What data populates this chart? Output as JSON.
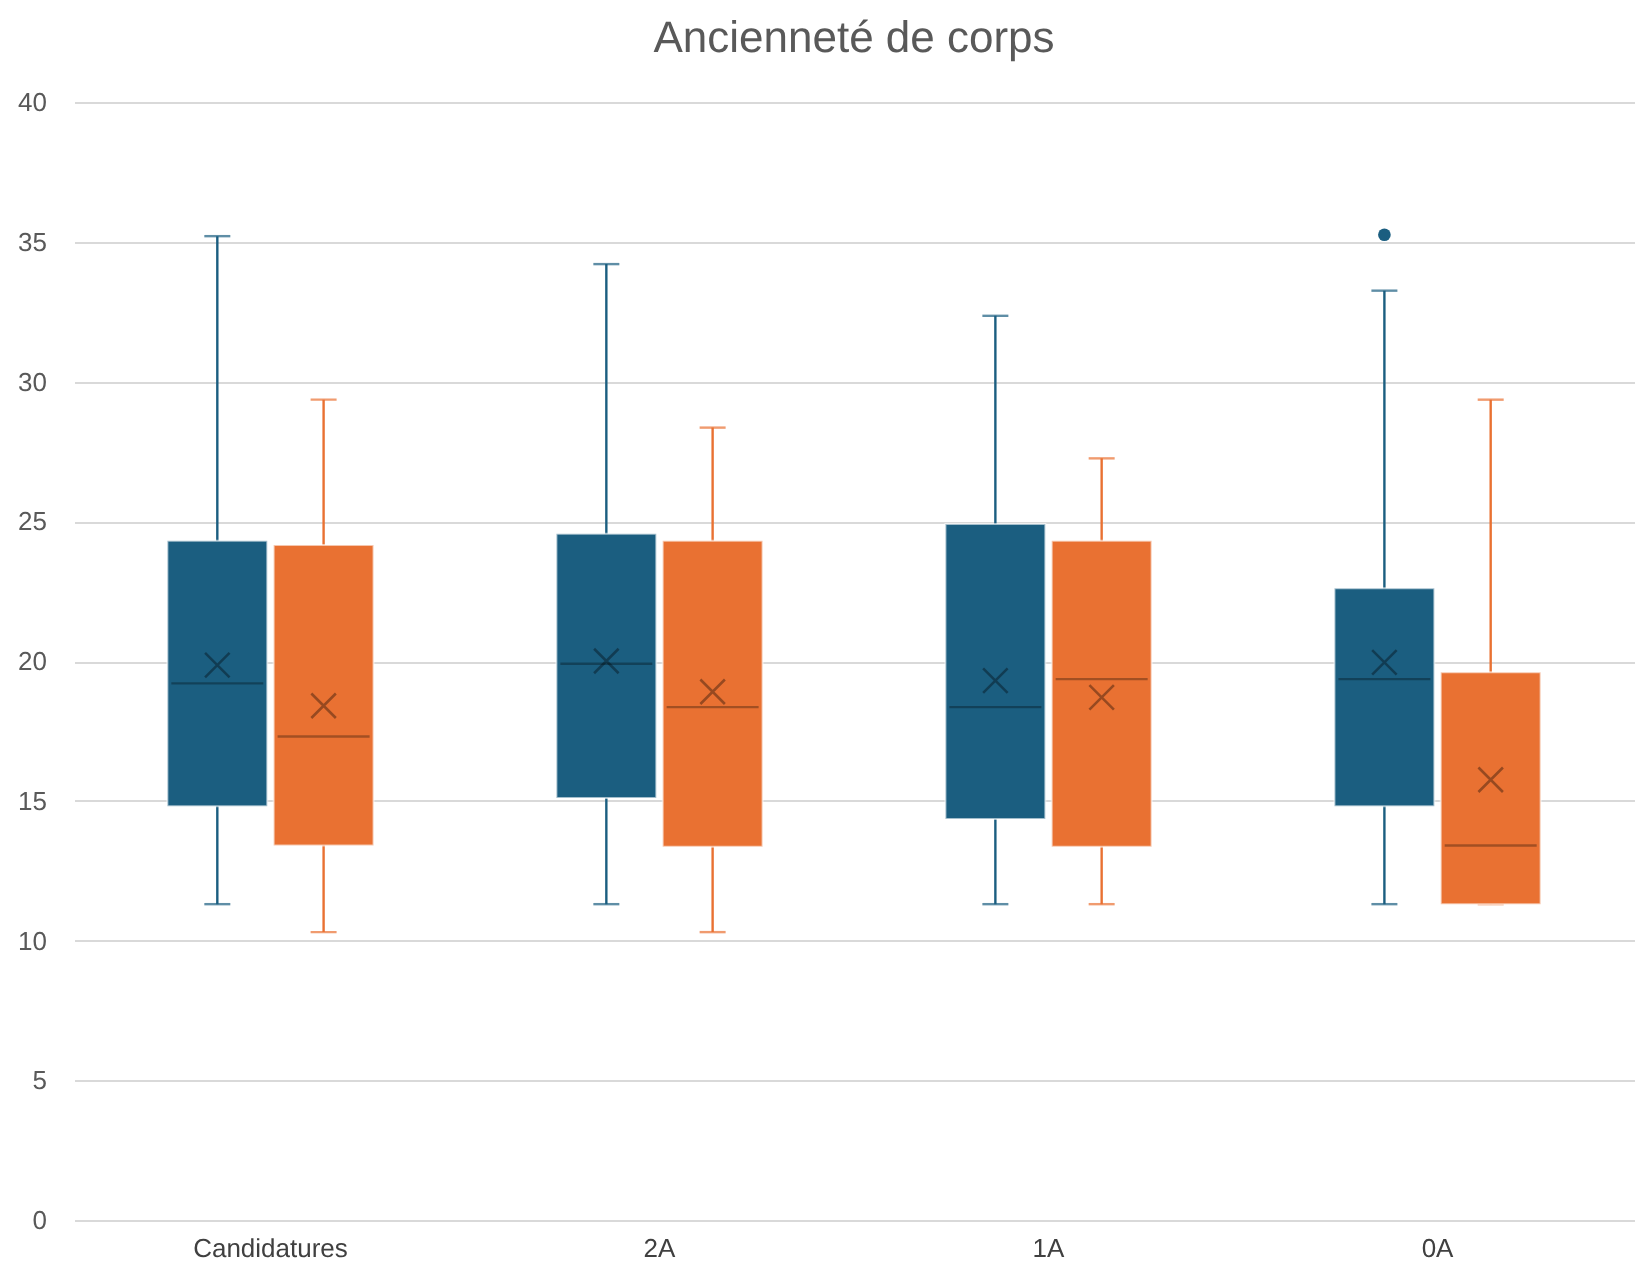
{
  "chart_data": {
    "type": "box",
    "title": "Ancienneté de corps",
    "categories": [
      "Candidatures",
      "2A",
      "1A",
      "0A"
    ],
    "ylim": [
      0,
      40
    ],
    "yticks": [
      0,
      5,
      10,
      15,
      20,
      25,
      30,
      35,
      40
    ],
    "grid": "y",
    "series": [
      {
        "color": "#1b5e80",
        "boxes": [
          {
            "low": 11.3,
            "q1": 14.8,
            "median": 19.2,
            "q3": 24.3,
            "high": 35.2,
            "mean": 19.85
          },
          {
            "low": 11.3,
            "q1": 15.1,
            "median": 19.9,
            "q3": 24.55,
            "high": 34.2,
            "mean": 20.0
          },
          {
            "low": 11.3,
            "q1": 14.35,
            "median": 18.35,
            "q3": 24.9,
            "high": 32.35,
            "mean": 19.3
          },
          {
            "low": 11.3,
            "q1": 14.8,
            "median": 19.35,
            "q3": 22.6,
            "high": 33.25,
            "mean": 19.95,
            "outliers": [
              35.25
            ]
          }
        ]
      },
      {
        "color": "#e97132",
        "boxes": [
          {
            "low": 10.3,
            "q1": 13.4,
            "median": 17.3,
            "q3": 24.15,
            "high": 29.35,
            "mean": 18.4
          },
          {
            "low": 10.3,
            "q1": 13.35,
            "median": 18.35,
            "q3": 24.3,
            "high": 28.35,
            "mean": 18.9
          },
          {
            "low": 11.3,
            "q1": 13.35,
            "median": 19.35,
            "q3": 24.3,
            "high": 27.25,
            "mean": 18.7
          },
          {
            "low": 11.3,
            "q1": 11.3,
            "median": 13.4,
            "q3": 19.6,
            "high": 29.35,
            "mean": 15.75
          }
        ]
      }
    ]
  }
}
